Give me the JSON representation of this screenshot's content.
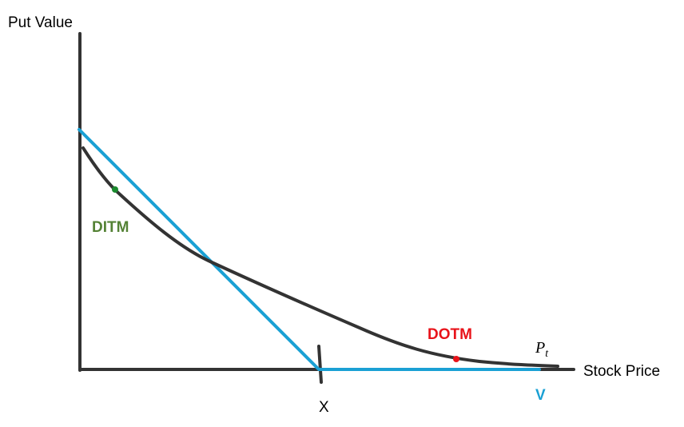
{
  "labels": {
    "y_axis": "Put Value",
    "x_axis": "Stock Price",
    "strike": "X",
    "ditm": "DITM",
    "dotm": "DOTM",
    "curve_main": "P",
    "curve_sub": "t",
    "payoff": "V"
  },
  "colors": {
    "axis": "#333333",
    "put_curve": "#333333",
    "payoff_line": "#1aa0d4",
    "ditm": "#548235",
    "ditm_dot": "#1a8a2e",
    "dotm": "#e8131a"
  }
}
